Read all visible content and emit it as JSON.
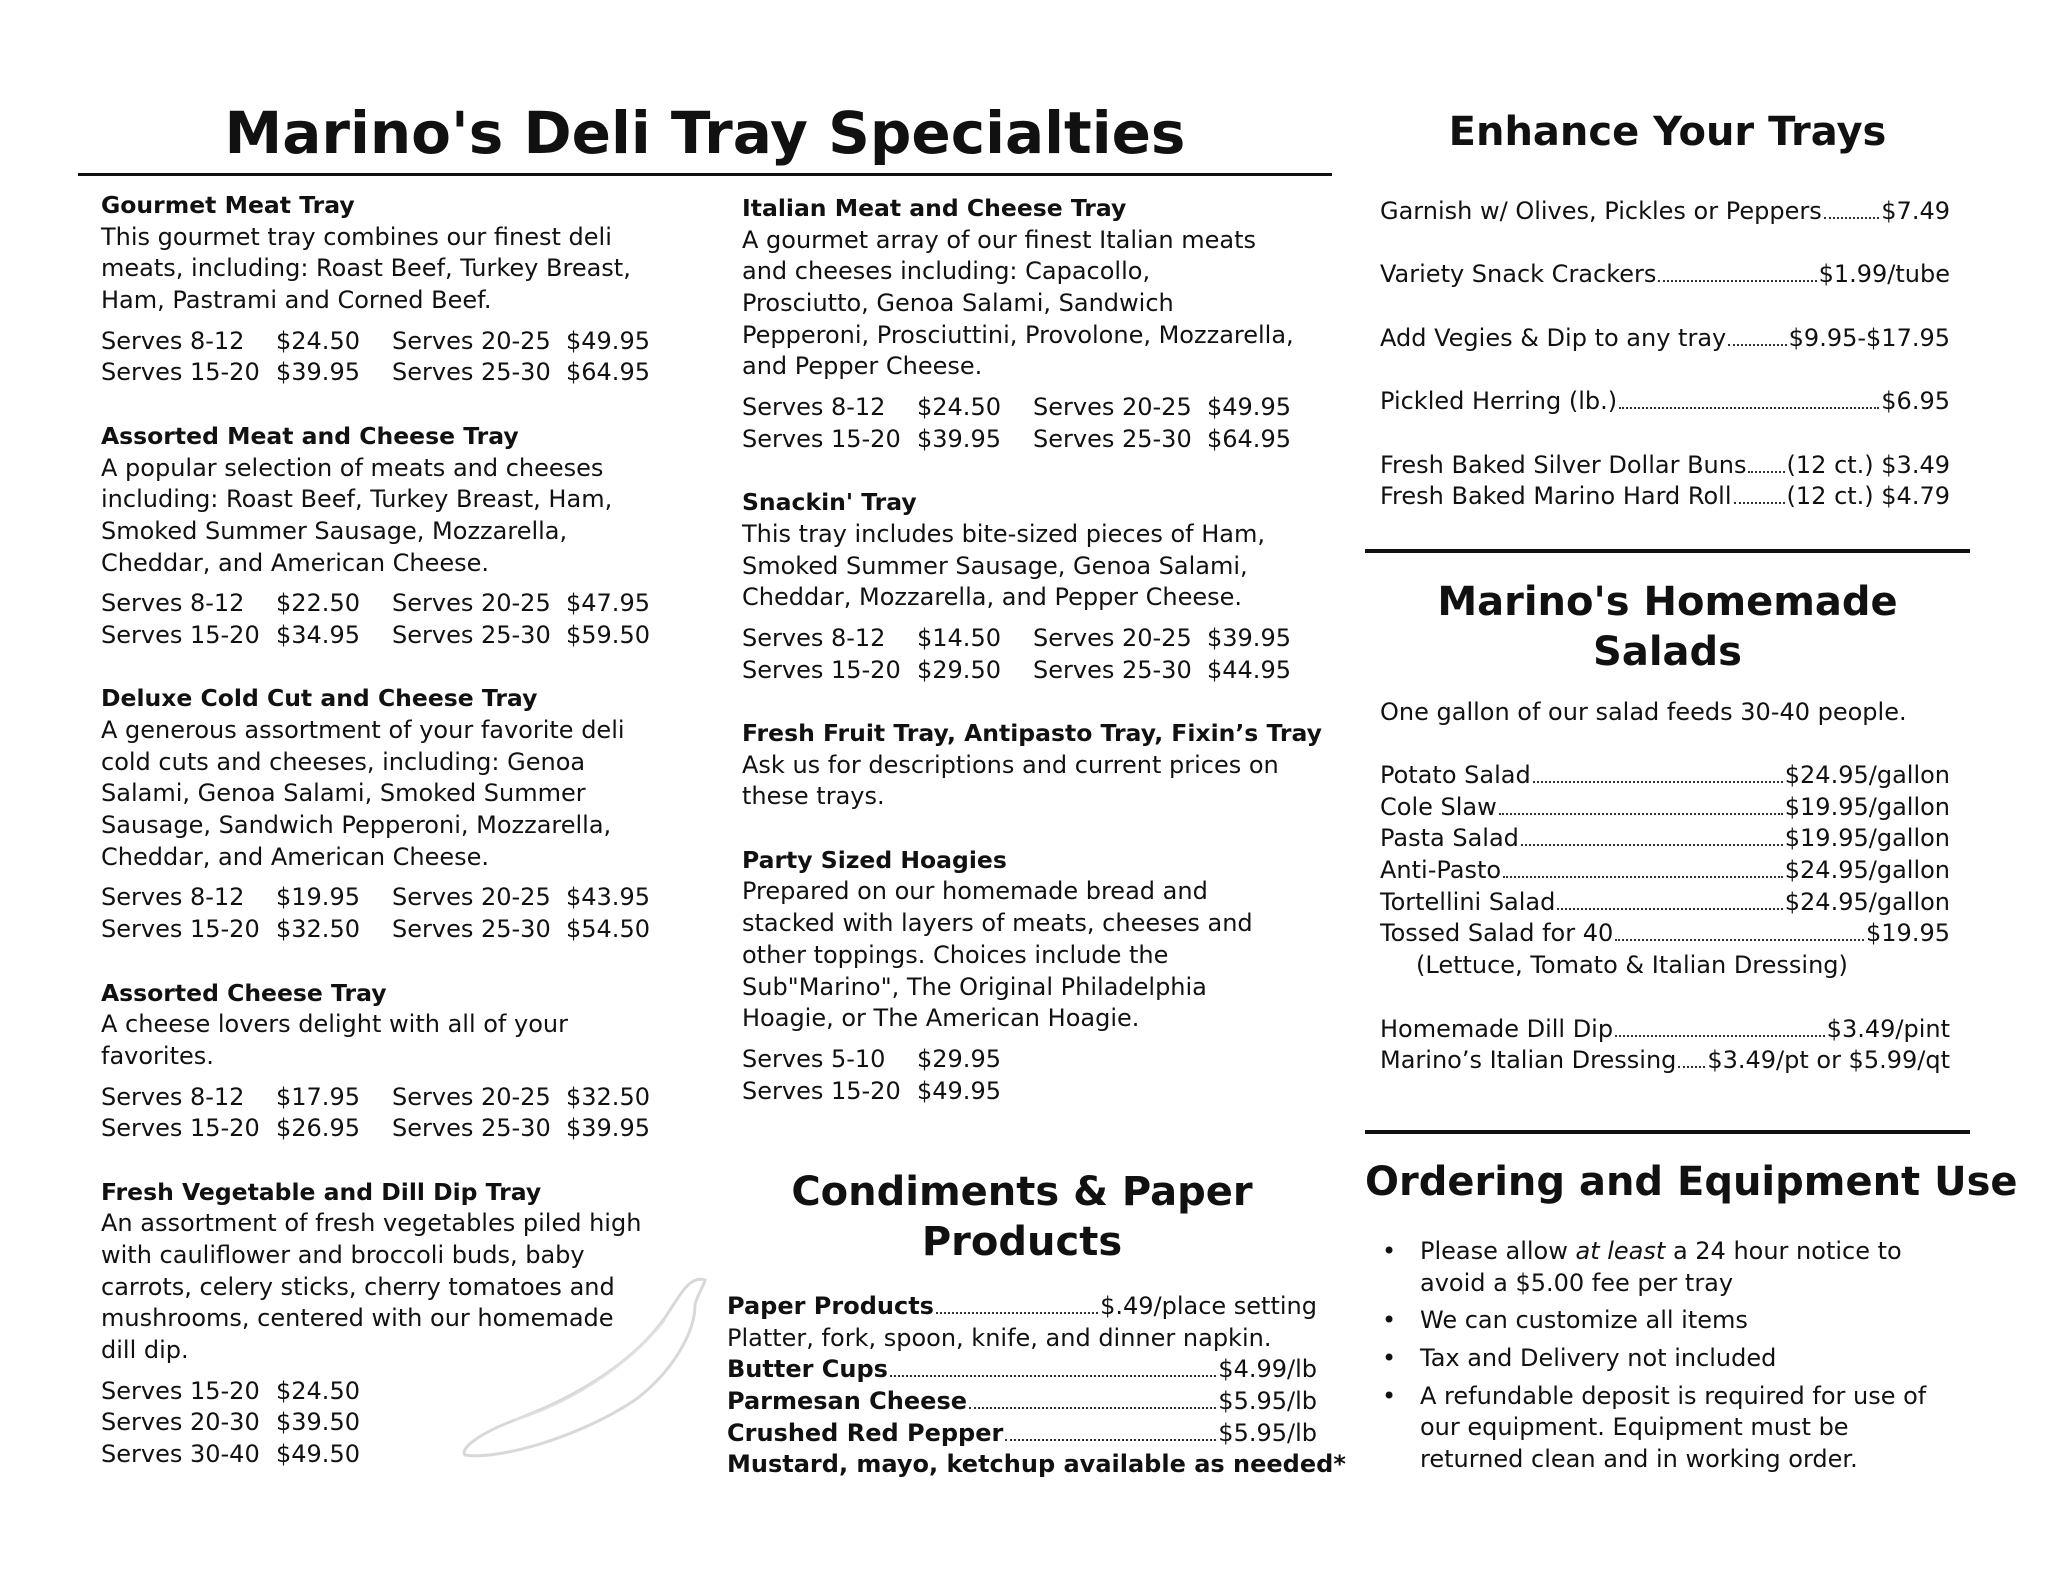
{
  "title": "Marino's Deli Tray Specialties",
  "trays_left": [
    {
      "name": "Gourmet Meat Tray",
      "desc": [
        "This gourmet tray combines our finest deli",
        "meats, including: Roast Beef, Turkey Breast,",
        "Ham, Pastrami and Corned Beef."
      ],
      "serves": [
        [
          "Serves  8-12",
          "$24.50",
          "Serves 20-25",
          "$49.95"
        ],
        [
          "Serves 15-20",
          "$39.95",
          "Serves 25-30",
          "$64.95"
        ]
      ]
    },
    {
      "name": "Assorted Meat and Cheese Tray",
      "desc": [
        "A popular selection of meats and cheeses",
        "including: Roast Beef, Turkey Breast, Ham,",
        "Smoked Summer Sausage, Mozzarella,",
        "Cheddar, and American Cheese."
      ],
      "serves": [
        [
          "Serves   8-12",
          "$22.50",
          "Serves 20-25",
          "$47.95"
        ],
        [
          "Serves  15-20",
          "$34.95",
          "Serves 25-30",
          "$59.50"
        ]
      ]
    },
    {
      "name": "Deluxe Cold Cut and Cheese Tray",
      "desc": [
        "A generous assortment of your favorite deli",
        "cold cuts and cheeses, including: Genoa",
        "Salami, Genoa Salami, Smoked Summer",
        "Sausage, Sandwich Pepperoni, Mozzarella,",
        "Cheddar, and American Cheese."
      ],
      "serves": [
        [
          "Serves  8-12",
          "$19.95",
          "Serves 20-25",
          "$43.95"
        ],
        [
          "Serves 15-20",
          "$32.50",
          "Serves 25-30",
          "$54.50"
        ]
      ]
    },
    {
      "name": "Assorted Cheese Tray",
      "desc": [
        "A cheese lovers delight with all of your",
        "favorites."
      ],
      "serves": [
        [
          "Serves  8-12",
          "$17.95",
          "Serves 20-25",
          "$32.50"
        ],
        [
          "Serves 15-20",
          "$26.95",
          "Serves 25-30",
          "$39.95"
        ]
      ]
    },
    {
      "name": "Fresh Vegetable and Dill Dip Tray",
      "desc": [
        "An assortment of fresh vegetables piled high",
        "with cauliflower and broccoli buds, baby",
        "carrots, celery sticks, cherry tomatoes and",
        "mushrooms, centered with our homemade",
        "dill dip."
      ],
      "serves": [
        [
          "Serves 15-20",
          "$24.50"
        ],
        [
          "Serves 20-30",
          "$39.50"
        ],
        [
          "Serves 30-40",
          "$49.50"
        ]
      ]
    }
  ],
  "trays_mid": [
    {
      "name": "Italian Meat and Cheese Tray",
      "desc": [
        "A gourmet array of our finest Italian meats",
        "and cheeses including:  Capacollo,",
        "Prosciutto, Genoa Salami, Sandwich",
        "Pepperoni, Prosciuttini, Provolone, Mozzarella,",
        "and Pepper Cheese."
      ],
      "serves": [
        [
          "Serves  8-12",
          "$24.50",
          "Serves 20-25",
          "$49.95"
        ],
        [
          "Serves 15-20",
          "$39.95",
          "Serves 25-30",
          "$64.95"
        ]
      ]
    },
    {
      "name": "Snackin' Tray",
      "desc": [
        "This tray includes bite-sized pieces of Ham,",
        "Smoked Summer Sausage, Genoa Salami,",
        "Cheddar, Mozzarella, and Pepper Cheese."
      ],
      "serves": [
        [
          "Serves  8-12",
          "$14.50",
          "Serves 20-25",
          "$39.95"
        ],
        [
          "Serves 15-20",
          "$29.50",
          "Serves 25-30",
          "$44.95"
        ]
      ]
    },
    {
      "name": "Fresh Fruit Tray, Antipasto Tray, Fixin’s Tray",
      "desc": [
        "Ask us for descriptions and current prices on",
        "these trays."
      ],
      "serves": []
    },
    {
      "name": "Party Sized Hoagies",
      "desc": [
        "Prepared on our homemade bread and",
        "stacked with layers of meats, cheeses and",
        "other toppings.  Choices include the",
        "Sub\"Marino\", The Original Philadelphia",
        "Hoagie, or The American Hoagie."
      ],
      "serves": [
        [
          "Serves  5-10",
          "$29.95"
        ],
        [
          "Serves 15-20",
          "$49.95"
        ]
      ]
    }
  ],
  "condiments": {
    "heading": [
      "Condiments & Paper",
      "Products"
    ],
    "paper_label": "Paper Products",
    "paper_price": "$.49/place setting",
    "paper_note": "Platter, fork, spoon, knife, and dinner napkin.",
    "items": [
      {
        "label": "Butter Cups",
        "price": "$4.99/lb"
      },
      {
        "label": "Parmesan Cheese",
        "price": "$5.95/lb"
      },
      {
        "label": "Crushed Red Pepper",
        "price": "$5.95/lb"
      }
    ],
    "footer": "Mustard, mayo, ketchup available as needed*"
  },
  "enhance": {
    "heading": "Enhance Your Trays",
    "items": [
      {
        "label": "Garnish w/ Olives, Pickles or Peppers",
        "price": "$7.49"
      },
      {
        "label": "Variety Snack Crackers",
        "price": "$1.99/tube"
      },
      {
        "label": "Add Vegies & Dip to any tray",
        "price": "$9.95-$17.95"
      },
      {
        "label": "Pickled Herring (lb.)",
        "price": "$6.95"
      },
      {
        "label": "Fresh Baked Silver Dollar Buns",
        "price": "(12 ct.) $3.49"
      },
      {
        "label": "Fresh Baked Marino Hard Roll",
        "price": "(12 ct.) $4.79"
      }
    ]
  },
  "salads": {
    "heading": [
      "Marino's Homemade",
      "Salads"
    ],
    "intro": "One gallon of our salad feeds 30-40 people.",
    "items": [
      {
        "label": "Potato Salad",
        "price": "$24.95/gallon"
      },
      {
        "label": "Cole Slaw",
        "price": "$19.95/gallon"
      },
      {
        "label": "Pasta Salad",
        "price": "$19.95/gallon"
      },
      {
        "label": "Anti-Pasto",
        "price": "$24.95/gallon"
      },
      {
        "label": "Tortellini Salad",
        "price": "$24.95/gallon"
      },
      {
        "label": "Tossed Salad for 40",
        "price": "$19.95"
      }
    ],
    "tossed_note": "(Lettuce, Tomato & Italian Dressing)",
    "dips": [
      {
        "label": "Homemade Dill Dip",
        "price": "$3.49/pint"
      },
      {
        "label": "Marino’s Italian Dressing",
        "price": "$3.49/pt or $5.99/qt"
      }
    ]
  },
  "ordering": {
    "heading": "Ordering and Equipment Use",
    "bullets": [
      [
        "Please allow ",
        "at least",
        " a 24 hour notice to",
        "avoid a $5.00 fee per tray"
      ],
      [
        "We can customize all items"
      ],
      [
        "Tax and Delivery not included"
      ],
      [
        "A refundable deposit is required for use of",
        "our equipment.  Equipment must be",
        "returned clean and in working order."
      ]
    ]
  },
  "watermark_icon": "chili-pepper-icon"
}
